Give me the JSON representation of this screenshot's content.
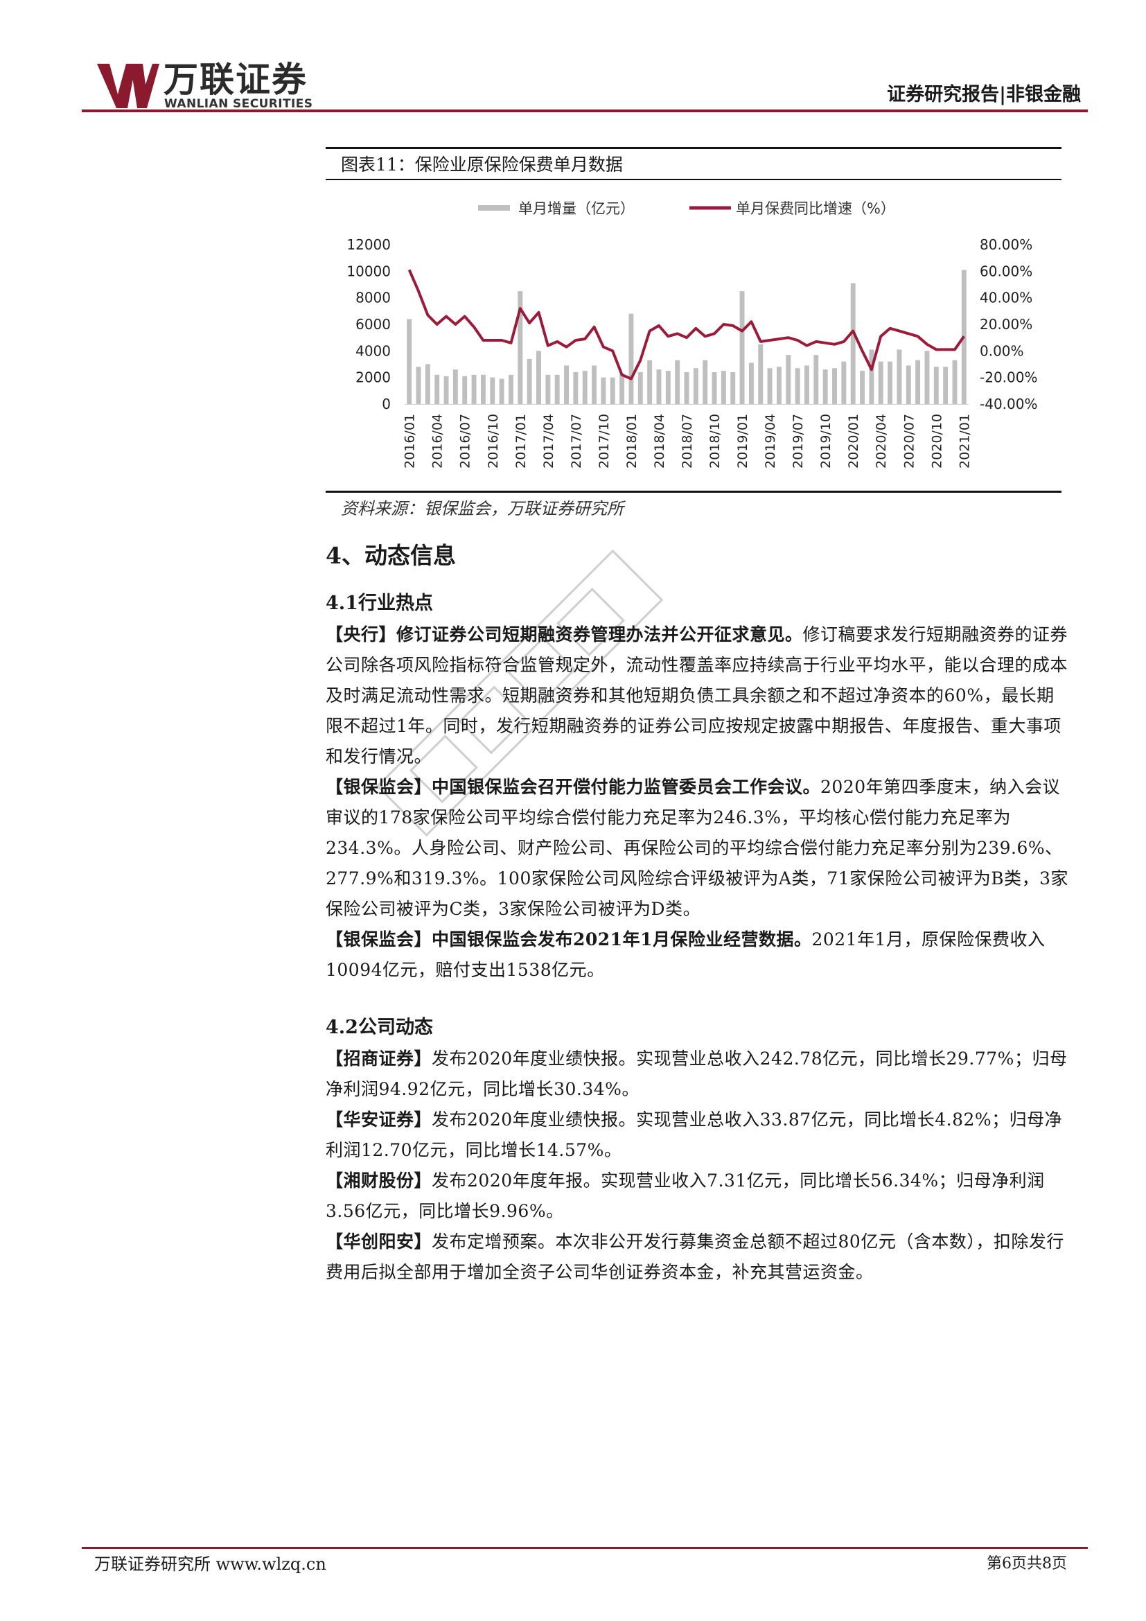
{
  "header": {
    "logo_cn": "万联证券",
    "logo_en": "WANLIAN SECURITIES",
    "report_type": "证券研究报告|非银金融"
  },
  "figure": {
    "title": "图表11：保险业原保险保费单月数据",
    "source": "资料来源：银保监会，万联证券研究所"
  },
  "colors": {
    "bar": "#bfbfbf",
    "line": "#9b1b3a",
    "accent": "#8c1a2f"
  },
  "chart_data": {
    "type": "bar",
    "categories": [
      "2016/01",
      "2016/02",
      "2016/03",
      "2016/04",
      "2016/05",
      "2016/06",
      "2016/07",
      "2016/08",
      "2016/09",
      "2016/10",
      "2016/11",
      "2016/12",
      "2017/01",
      "2017/02",
      "2017/03",
      "2017/04",
      "2017/05",
      "2017/06",
      "2017/07",
      "2017/08",
      "2017/09",
      "2017/10",
      "2017/11",
      "2017/12",
      "2018/01",
      "2018/02",
      "2018/03",
      "2018/04",
      "2018/05",
      "2018/06",
      "2018/07",
      "2018/08",
      "2018/09",
      "2018/10",
      "2018/11",
      "2018/12",
      "2019/01",
      "2019/02",
      "2019/03",
      "2019/04",
      "2019/05",
      "2019/06",
      "2019/07",
      "2019/08",
      "2019/09",
      "2019/10",
      "2019/11",
      "2019/12",
      "2020/01",
      "2020/02",
      "2020/03",
      "2020/04",
      "2020/05",
      "2020/06",
      "2020/07",
      "2020/08",
      "2020/09",
      "2020/10",
      "2020/11",
      "2020/12",
      "2021/01"
    ],
    "tick_labels": [
      "2016/01",
      "2016/04",
      "2016/07",
      "2016/10",
      "2017/01",
      "2017/04",
      "2017/07",
      "2017/10",
      "2018/01",
      "2018/04",
      "2018/07",
      "2018/10",
      "2019/01",
      "2019/04",
      "2019/07",
      "2019/10",
      "2020/01",
      "2020/04",
      "2020/07",
      "2020/10",
      "2021/01"
    ],
    "series": [
      {
        "name": "单月增量（亿元）",
        "type": "bar",
        "axis": "left",
        "values": [
          6400,
          2800,
          3000,
          2200,
          2100,
          2600,
          2100,
          2200,
          2200,
          2000,
          1900,
          2200,
          8500,
          3400,
          4000,
          2200,
          2200,
          2900,
          2400,
          2500,
          2900,
          2000,
          2000,
          2300,
          6800,
          2400,
          3300,
          2600,
          2500,
          3300,
          2400,
          2700,
          3300,
          2400,
          2500,
          2400,
          8500,
          3100,
          4500,
          2700,
          2800,
          3700,
          2700,
          2900,
          3700,
          2600,
          2700,
          3200,
          9100,
          2500,
          4100,
          3200,
          3200,
          4100,
          2900,
          3300,
          4000,
          2800,
          2800,
          3300,
          10094
        ]
      },
      {
        "name": "单月保费同比增速（%）",
        "type": "line",
        "axis": "right",
        "values": [
          61,
          45,
          27,
          20,
          26,
          20,
          26,
          18,
          8,
          8,
          8,
          6,
          32,
          21,
          29,
          4,
          7,
          3,
          8,
          9,
          18,
          3,
          0,
          -18,
          -21,
          -7,
          15,
          19,
          11,
          13,
          10,
          17,
          11,
          13,
          20,
          19,
          15,
          22,
          7,
          8,
          9,
          10,
          8,
          4,
          7,
          6,
          5,
          7,
          15,
          0,
          -14,
          11,
          17,
          15,
          13,
          11,
          5,
          1,
          1,
          1,
          11
        ]
      }
    ],
    "y_left": {
      "ticks": [
        "0",
        "2000",
        "4000",
        "6000",
        "8000",
        "10000",
        "12000"
      ],
      "range": [
        0,
        12000
      ]
    },
    "y_right": {
      "ticks": [
        "-40.00%",
        "-20.00%",
        "0.00%",
        "20.00%",
        "40.00%",
        "60.00%",
        "80.00%"
      ],
      "range": [
        -40,
        80
      ]
    },
    "legend": "top",
    "grid": false
  },
  "section4": {
    "title": "4、动态信息",
    "s41": {
      "title": "4.1行业热点",
      "p1_head": "【央行】修订证券公司短期融资券管理办法并公开征求意见。",
      "p1_body": "修订稿要求发行短期融资券的证券公司除各项风险指标符合监管规定外，流动性覆盖率应持续高于行业平均水平，能以合理的成本及时满足流动性需求。短期融资券和其他短期负债工具余额之和不超过净资本的60%，最长期限不超过1年。同时，发行短期融资券的证券公司应按规定披露中期报告、年度报告、重大事项和发行情况。",
      "p2_head": "【银保监会】中国银保监会召开偿付能力监管委员会工作会议。",
      "p2_body": "2020年第四季度末，纳入会议审议的178家保险公司平均综合偿付能力充足率为246.3%，平均核心偿付能力充足率为234.3%。人身险公司、财产险公司、再保险公司的平均综合偿付能力充足率分别为239.6%、277.9%和319.3%。100家保险公司风险综合评级被评为A类，71家保险公司被评为B类，3家保险公司被评为C类，3家保险公司被评为D类。",
      "p3_head": "【银保监会】中国银保监会发布2021年1月保险业经营数据。",
      "p3_body": "2021年1月，原保险保费收入10094亿元，赔付支出1538亿元。"
    },
    "s42": {
      "title": "4.2公司动态",
      "p1_head": "【招商证券】",
      "p1_body": "发布2020年度业绩快报。实现营业总收入242.78亿元，同比增长29.77%；归母净利润94.92亿元，同比增长30.34%。",
      "p2_head": "【华安证券】",
      "p2_body": "发布2020年度业绩快报。实现营业总收入33.87亿元，同比增长4.82%；归母净利润12.70亿元，同比增长14.57%。",
      "p3_head": "【湘财股份】",
      "p3_body": "发布2020年度年报。实现营业收入7.31亿元，同比增长56.34%；归母净利润3.56亿元，同比增长9.96%。",
      "p4_head": "【华创阳安】",
      "p4_body": "发布定增预案。本次非公开发行募集资金总额不超过80亿元（含本数），扣除发行费用后拟全部用于增加全资子公司华创证券资本金，补充其营运资金。"
    }
  },
  "footer": {
    "left": "万联证券研究所 www.wlzq.cn",
    "right": "第6页共8页"
  }
}
